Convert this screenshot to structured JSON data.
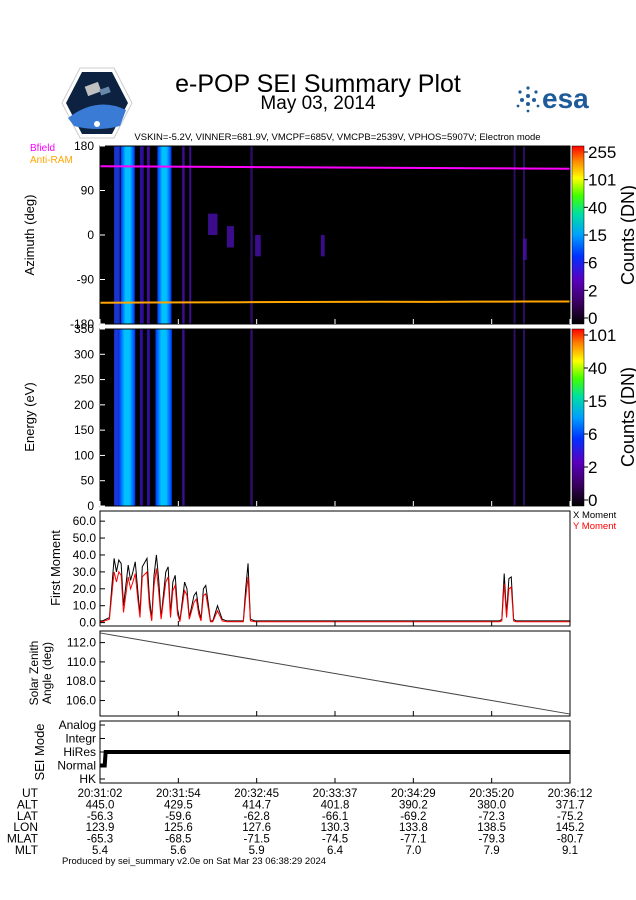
{
  "header": {
    "title": "e-POP SEI Summary Plot",
    "date": "May 03, 2014",
    "params": "VSKIN=-5.2V, VINNER=681.9V, VMCPF=685V, VMCPB=2539V, VPHOS=5907V; Electron mode",
    "esa_logo_text": "esa"
  },
  "legend": {
    "bfield": "Bfield",
    "antiram": "Anti-RAM"
  },
  "colors": {
    "bfield": "#ff00ff",
    "antiram": "#ffa500",
    "x_moment": "#000000",
    "y_moment": "#ff0000"
  },
  "footer": "Produced by sei_summary v2.0e on Sat Mar 23 06:38:29 2024",
  "chart_data": [
    {
      "type": "heatmap",
      "name": "azimuth",
      "ylabel": "Azimuth (deg)",
      "ylim": [
        -180,
        180
      ],
      "y_ticks": [
        "180",
        "90",
        "0",
        "-90",
        "-180"
      ],
      "y_tick_values": [
        180,
        90,
        0,
        -90,
        -180
      ],
      "colorbar_label": "Counts (DN)",
      "colorbar_ticks": [
        "255",
        "101",
        "40",
        "15",
        "6",
        "2",
        "0"
      ],
      "bfield_deg": [
        139,
        138.5,
        138,
        137.5,
        137,
        136.5,
        136,
        135.5,
        135,
        134.5,
        134
      ],
      "antiram_deg": [
        -137,
        -136.6,
        -136.2,
        -135.9,
        -135.5,
        -135.2,
        -135,
        -135.2,
        -134.8,
        -134.6,
        -134.5
      ]
    },
    {
      "type": "heatmap",
      "name": "energy",
      "ylabel": "Energy (eV)",
      "ylim": [
        0,
        350
      ],
      "y_ticks": [
        "350",
        "300",
        "250",
        "200",
        "150",
        "100",
        "50",
        "0"
      ],
      "y_tick_values": [
        350,
        300,
        250,
        200,
        150,
        100,
        50,
        0
      ],
      "colorbar_label": "Counts (DN)",
      "colorbar_ticks": [
        "101",
        "40",
        "15",
        "6",
        "2",
        "0"
      ]
    },
    {
      "type": "line",
      "name": "first_moment",
      "ylabel": "First Moment",
      "ylim": [
        -2,
        66
      ],
      "y_ticks": [
        "60.0",
        "50.0",
        "40.0",
        "30.0",
        "20.0",
        "10.0",
        "0.0"
      ],
      "y_tick_values": [
        60,
        50,
        40,
        30,
        20,
        10,
        0
      ],
      "x_norm": [
        0.0,
        0.005,
        0.02,
        0.03,
        0.035,
        0.04,
        0.045,
        0.05,
        0.06,
        0.065,
        0.07,
        0.075,
        0.08,
        0.085,
        0.09,
        0.1,
        0.105,
        0.11,
        0.115,
        0.12,
        0.125,
        0.13,
        0.14,
        0.145,
        0.15,
        0.155,
        0.16,
        0.165,
        0.17,
        0.18,
        0.185,
        0.19,
        0.2,
        0.205,
        0.21,
        0.215,
        0.22,
        0.225,
        0.23,
        0.235,
        0.24,
        0.25,
        0.26,
        0.27,
        0.28,
        0.3,
        0.305,
        0.31,
        0.315,
        0.32,
        0.33,
        0.4,
        0.55,
        0.7,
        0.83,
        0.85,
        0.855,
        0.86,
        0.865,
        0.87,
        0.875,
        0.88,
        0.885,
        0.89,
        0.9,
        1.0
      ],
      "series": [
        {
          "name": "X Moment",
          "values": [
            1,
            1,
            3,
            38,
            30,
            37,
            35,
            10,
            34,
            25,
            30,
            36,
            20,
            5,
            33,
            38,
            15,
            2,
            28,
            40,
            25,
            3,
            30,
            33,
            5,
            24,
            28,
            8,
            1,
            24,
            20,
            3,
            16,
            18,
            8,
            2,
            20,
            22,
            12,
            1,
            1,
            10,
            2,
            1,
            1,
            1,
            1,
            20,
            35,
            2,
            1,
            1,
            1,
            1,
            1,
            1,
            2,
            29,
            5,
            26,
            27,
            2,
            1,
            1,
            1,
            1
          ]
        },
        {
          "name": "Y Moment",
          "values": [
            0.5,
            0.5,
            2,
            30,
            24,
            30,
            28,
            6,
            27,
            20,
            24,
            29,
            15,
            3,
            27,
            30,
            10,
            1,
            22,
            32,
            18,
            2,
            24,
            27,
            3,
            19,
            22,
            5,
            0.5,
            19,
            16,
            2,
            12,
            14,
            5,
            1,
            16,
            17,
            9,
            0.5,
            0.5,
            7,
            1,
            0.5,
            0.5,
            0.5,
            0.5,
            15,
            27,
            1,
            0.5,
            0.5,
            0.5,
            0.5,
            0.5,
            0.5,
            1,
            23,
            3,
            20,
            21,
            1,
            0.5,
            0.5,
            0.5,
            0.5
          ]
        }
      ],
      "legend": [
        "X Moment",
        "Y Moment"
      ]
    },
    {
      "type": "line",
      "name": "solar_zenith",
      "ylabel": "Solar Zenith Angle (deg)",
      "ylabel_lines": [
        "Solar Zenith",
        "Angle (deg)"
      ],
      "ylim": [
        104.4,
        113.2
      ],
      "y_ticks": [
        "112.0",
        "110.0",
        "108.0",
        "106.0"
      ],
      "y_tick_values": [
        112,
        110,
        108,
        106
      ],
      "x_norm": [
        0,
        1
      ],
      "values": [
        113.0,
        104.6
      ]
    },
    {
      "type": "line",
      "name": "sei_mode",
      "ylabel": "SEI Mode",
      "categories": [
        "Analog",
        "Integr",
        "HiRes",
        "Normal",
        "HK"
      ],
      "category_levels": [
        4,
        3,
        2,
        1,
        0
      ],
      "x_norm": [
        0,
        0.01,
        0.012,
        0.018,
        1
      ],
      "values": [
        1,
        1,
        2,
        2,
        2
      ]
    }
  ],
  "xaxis": {
    "row_labels": [
      "UT",
      "ALT",
      "LAT",
      "LON",
      "MLAT",
      "MLT"
    ],
    "columns": [
      [
        "20:31:02",
        "445.0",
        "-56.3",
        "123.9",
        "-65.3",
        "5.4"
      ],
      [
        "20:31:54",
        "429.5",
        "-59.6",
        "125.6",
        "-68.5",
        "5.6"
      ],
      [
        "20:32:45",
        "414.7",
        "-62.8",
        "127.6",
        "-71.5",
        "5.9"
      ],
      [
        "20:33:37",
        "401.8",
        "-66.1",
        "130.3",
        "-74.5",
        "6.4"
      ],
      [
        "20:34:29",
        "390.2",
        "-69.2",
        "133.8",
        "-77.1",
        "7.0"
      ],
      [
        "20:35:20",
        "380.0",
        "-72.3",
        "138.5",
        "-79.3",
        "7.9"
      ],
      [
        "20:36:12",
        "371.7",
        "-75.2",
        "145.2",
        "-80.7",
        "9.1"
      ]
    ]
  }
}
